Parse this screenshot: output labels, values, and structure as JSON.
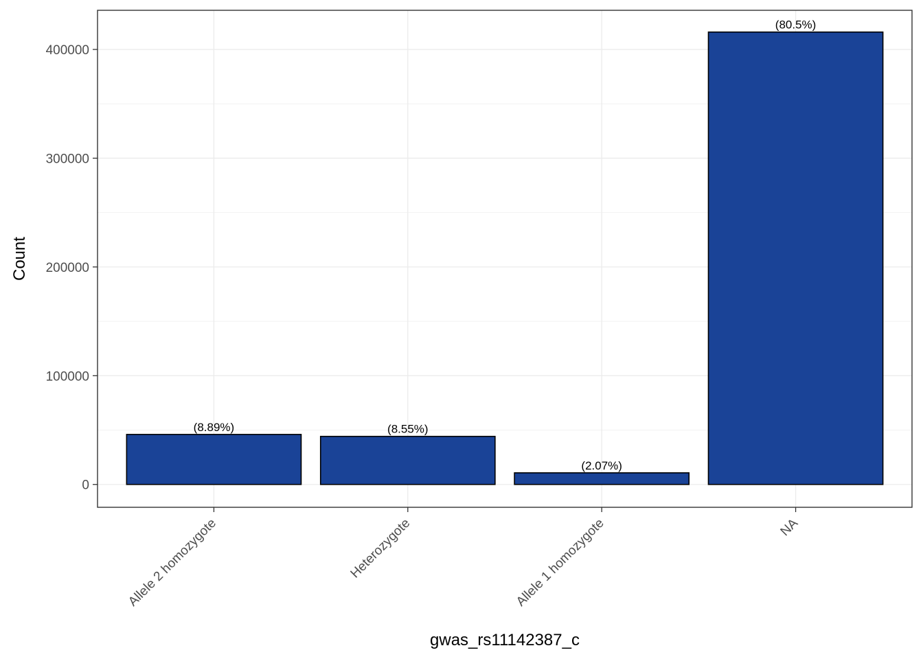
{
  "chart_data": {
    "type": "bar",
    "xlabel": "gwas_rs11142387_c",
    "ylabel": "Count",
    "categories": [
      "Allele 2 homozygote",
      "Heterozygote",
      "Allele 1 homozygote",
      "NA"
    ],
    "values": [
      46000,
      44200,
      10700,
      416000
    ],
    "data_labels": [
      "(8.89%)",
      "(8.55%)",
      "(2.07%)",
      "(80.5%)"
    ],
    "yticks": [
      0,
      100000,
      200000,
      300000,
      400000
    ],
    "ytick_labels": [
      "0",
      "100000",
      "200000",
      "300000",
      "400000"
    ],
    "ylim": [
      -21000,
      436000
    ],
    "grid": true,
    "bar_color": "#1a4397",
    "bar_edge_color": "#000000",
    "legend": "none"
  }
}
